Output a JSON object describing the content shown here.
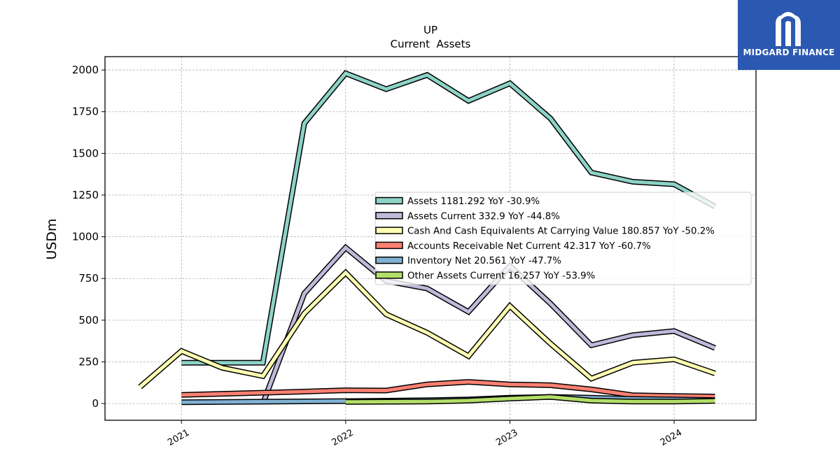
{
  "chart_data": {
    "type": "line",
    "title": "UP",
    "subtitle": "Current  Assets",
    "ylabel": "USDm",
    "xlabel": "",
    "ylim": [
      -100,
      2080
    ],
    "xlim": [
      "2020-07-15",
      "2024-07-01"
    ],
    "yticks": [
      0,
      250,
      500,
      750,
      1000,
      1250,
      1500,
      1750,
      2000
    ],
    "xticks": [
      {
        "label": "2021",
        "date": "2021-01-01"
      },
      {
        "label": "2022",
        "date": "2022-01-01"
      },
      {
        "label": "2023",
        "date": "2023-01-01"
      },
      {
        "label": "2024",
        "date": "2024-01-01"
      }
    ],
    "grid": true,
    "legend_position": "center-right",
    "series": [
      {
        "name": "Assets",
        "legend": "Assets  1181.292 YoY -30.9%",
        "color": "#8dd3c7",
        "points": [
          [
            "2021-01-01",
            245
          ],
          [
            "2021-07-01",
            245
          ],
          [
            "2021-10-01",
            1680
          ],
          [
            "2022-01-01",
            1980
          ],
          [
            "2022-04-01",
            1885
          ],
          [
            "2022-07-01",
            1970
          ],
          [
            "2022-10-01",
            1815
          ],
          [
            "2023-01-01",
            1920
          ],
          [
            "2023-04-01",
            1710
          ],
          [
            "2023-07-01",
            1385
          ],
          [
            "2023-10-01",
            1330
          ],
          [
            "2024-01-01",
            1315
          ],
          [
            "2024-04-01",
            1181.292
          ]
        ]
      },
      {
        "name": "Assets Current",
        "legend": "Assets Current  332.9 YoY -44.8%",
        "color": "#bebada",
        "points": [
          [
            "2021-07-01",
            0
          ],
          [
            "2021-10-01",
            660
          ],
          [
            "2022-01-01",
            935
          ],
          [
            "2022-04-01",
            735
          ],
          [
            "2022-07-01",
            690
          ],
          [
            "2022-10-01",
            550
          ],
          [
            "2023-01-01",
            825
          ],
          [
            "2023-04-01",
            600
          ],
          [
            "2023-07-01",
            350
          ],
          [
            "2023-10-01",
            410
          ],
          [
            "2024-01-01",
            435
          ],
          [
            "2024-04-01",
            332.9
          ]
        ]
      },
      {
        "name": "Cash And Cash Equivalents At Carrying Value",
        "legend": "Cash And Cash Equivalents At Carrying Value  180.857 YoY -50.2%",
        "color": "#ffffb3",
        "points": [
          [
            "2020-10-01",
            100
          ],
          [
            "2021-01-01",
            315
          ],
          [
            "2021-04-01",
            215
          ],
          [
            "2021-07-01",
            165
          ],
          [
            "2021-10-01",
            540
          ],
          [
            "2022-01-01",
            785
          ],
          [
            "2022-04-01",
            535
          ],
          [
            "2022-07-01",
            425
          ],
          [
            "2022-10-01",
            285
          ],
          [
            "2023-01-01",
            585
          ],
          [
            "2023-04-01",
            360
          ],
          [
            "2023-07-01",
            150
          ],
          [
            "2023-10-01",
            245
          ],
          [
            "2024-01-01",
            265
          ],
          [
            "2024-04-01",
            180.857
          ]
        ]
      },
      {
        "name": "Accounts Receivable Net Current",
        "legend": "Accounts Receivable Net Current  42.317 YoY -60.7%",
        "color": "#fb8072",
        "points": [
          [
            "2021-01-01",
            52
          ],
          [
            "2021-07-01",
            65
          ],
          [
            "2021-10-01",
            72
          ],
          [
            "2022-01-01",
            80
          ],
          [
            "2022-04-01",
            78
          ],
          [
            "2022-07-01",
            115
          ],
          [
            "2022-10-01",
            130
          ],
          [
            "2023-01-01",
            115
          ],
          [
            "2023-04-01",
            110
          ],
          [
            "2023-07-01",
            85
          ],
          [
            "2023-10-01",
            50
          ],
          [
            "2024-01-01",
            45
          ],
          [
            "2024-04-01",
            42.317
          ]
        ]
      },
      {
        "name": "Inventory Net",
        "legend": "Inventory Net  20.561 YoY -47.7%",
        "color": "#80b1d3",
        "points": [
          [
            "2021-01-01",
            8
          ],
          [
            "2022-01-01",
            15
          ],
          [
            "2022-07-01",
            20
          ],
          [
            "2022-10-01",
            25
          ],
          [
            "2023-01-01",
            35
          ],
          [
            "2023-04-01",
            40
          ],
          [
            "2023-07-01",
            35
          ],
          [
            "2023-10-01",
            28
          ],
          [
            "2024-01-01",
            25
          ],
          [
            "2024-04-01",
            20.561
          ]
        ]
      },
      {
        "name": "Other Assets Current",
        "legend": "Other Assets Current  16.257 YoY -53.9%",
        "color": "#b3de69",
        "points": [
          [
            "2022-01-01",
            10
          ],
          [
            "2022-07-01",
            12
          ],
          [
            "2022-10-01",
            18
          ],
          [
            "2023-01-01",
            30
          ],
          [
            "2023-04-01",
            40
          ],
          [
            "2023-07-01",
            18
          ],
          [
            "2023-10-01",
            12
          ],
          [
            "2024-01-01",
            12
          ],
          [
            "2024-04-01",
            16.257
          ]
        ]
      }
    ]
  },
  "logo": {
    "text": "MIDGARD FINANCE",
    "background": "#2b58b0"
  }
}
